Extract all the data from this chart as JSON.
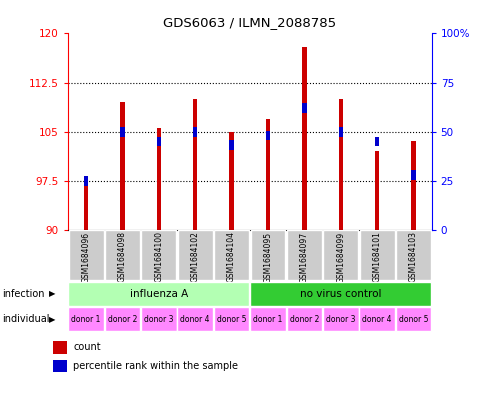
{
  "title": "GDS6063 / ILMN_2088785",
  "samples": [
    "GSM1684096",
    "GSM1684098",
    "GSM1684100",
    "GSM1684102",
    "GSM1684104",
    "GSM1684095",
    "GSM1684097",
    "GSM1684099",
    "GSM1684101",
    "GSM1684103"
  ],
  "count_values": [
    97.5,
    109.5,
    105.5,
    110.0,
    105.0,
    107.0,
    118.0,
    110.0,
    102.0,
    103.5
  ],
  "percentile_values": [
    25,
    50,
    45,
    50,
    43,
    48,
    62,
    50,
    45,
    28
  ],
  "ylim_left": [
    90,
    120
  ],
  "ylim_right": [
    0,
    100
  ],
  "yticks_left": [
    90,
    97.5,
    105,
    112.5,
    120
  ],
  "yticks_right": [
    0,
    25,
    50,
    75,
    100
  ],
  "bar_color": "#cc0000",
  "blue_color": "#0000cc",
  "infection_groups": [
    {
      "label": "influenza A",
      "start": 0,
      "end": 5,
      "color": "#b3ffb3"
    },
    {
      "label": "no virus control",
      "start": 5,
      "end": 10,
      "color": "#33cc33"
    }
  ],
  "individual_labels": [
    "donor 1",
    "donor 2",
    "donor 3",
    "donor 4",
    "donor 5",
    "donor 1",
    "donor 2",
    "donor 3",
    "donor 4",
    "donor 5"
  ],
  "individual_color": "#ff88ff",
  "legend_count_color": "#cc0000",
  "legend_percentile_color": "#0000cc",
  "sample_bg": "#cccccc"
}
